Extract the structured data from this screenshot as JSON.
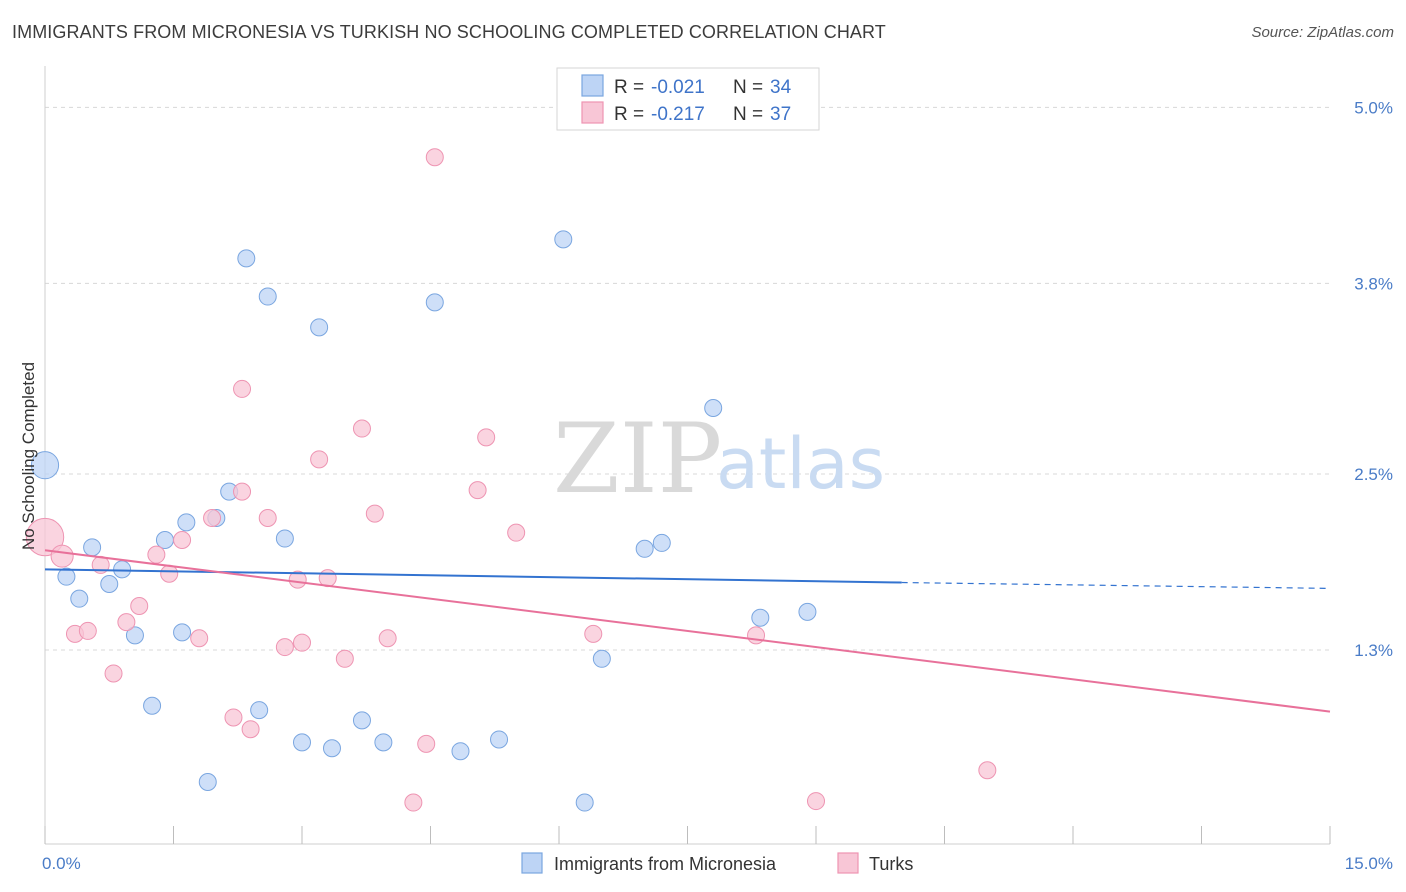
{
  "header": {
    "title": "IMMIGRANTS FROM MICRONESIA VS TURKISH NO SCHOOLING COMPLETED CORRELATION CHART",
    "source": "Source: ZipAtlas.com"
  },
  "watermark": {
    "part1": "ZIP",
    "part2": "atlas"
  },
  "legend": {
    "rows": [
      {
        "r_label": "R =",
        "r_value": "-0.021",
        "n_label": "N =",
        "n_value": "34"
      },
      {
        "r_label": "R =",
        "r_value": "-0.217",
        "n_label": "N =",
        "n_value": "37"
      }
    ]
  },
  "bottom_legend": {
    "items": [
      {
        "label": "Immigrants from Micronesia"
      },
      {
        "label": "Turks"
      }
    ]
  },
  "colors": {
    "blue_fill": "#bdd4f5",
    "blue_stroke": "#7aa6e0",
    "blue_line": "#3373d0",
    "pink_fill": "#f8c6d6",
    "pink_stroke": "#ee94b2",
    "pink_line": "#e8719a",
    "tick_label": "#4a7cc7",
    "grid": "#d8d8d8"
  },
  "chart_data": {
    "type": "scatter",
    "title": "IMMIGRANTS FROM MICRONESIA VS TURKISH NO SCHOOLING COMPLETED CORRELATION CHART",
    "xlabel": "",
    "ylabel": "No Schooling Completed",
    "xlim": [
      0,
      15
    ],
    "ylim": [
      0.1,
      5.2
    ],
    "x_tick_labels": [
      {
        "value": 0,
        "label": "0.0%"
      },
      {
        "value": 15,
        "label": "15.0%"
      }
    ],
    "y_tick_labels": [
      {
        "value": 1.3,
        "label": "1.3%"
      },
      {
        "value": 2.5,
        "label": "2.5%"
      },
      {
        "value": 3.8,
        "label": "3.8%"
      },
      {
        "value": 5.0,
        "label": "5.0%"
      }
    ],
    "grid": true,
    "legend_position": "top-center",
    "series": [
      {
        "name": "Immigrants from Micronesia",
        "color": "#7aa6e0",
        "r": -0.021,
        "n": 34,
        "points": [
          [
            0.0,
            2.56,
            1.6
          ],
          [
            0.25,
            1.8,
            1
          ],
          [
            0.4,
            1.65,
            1
          ],
          [
            0.55,
            2.0,
            1
          ],
          [
            0.75,
            1.75,
            1
          ],
          [
            0.9,
            1.85,
            1
          ],
          [
            1.05,
            1.4,
            1
          ],
          [
            1.25,
            0.92,
            1
          ],
          [
            1.4,
            2.05,
            1
          ],
          [
            1.6,
            1.42,
            1
          ],
          [
            1.65,
            2.17,
            1
          ],
          [
            1.9,
            0.4,
            1
          ],
          [
            2.0,
            2.2,
            1
          ],
          [
            2.15,
            2.38,
            1
          ],
          [
            2.35,
            3.97,
            1
          ],
          [
            2.5,
            0.89,
            1
          ],
          [
            2.6,
            3.71,
            1
          ],
          [
            2.8,
            2.06,
            1
          ],
          [
            3.0,
            0.67,
            1
          ],
          [
            3.2,
            3.5,
            1
          ],
          [
            3.35,
            0.63,
            1
          ],
          [
            3.7,
            0.82,
            1
          ],
          [
            3.95,
            0.67,
            1
          ],
          [
            4.55,
            3.67,
            1
          ],
          [
            4.85,
            0.61,
            1
          ],
          [
            5.3,
            0.69,
            1
          ],
          [
            6.05,
            4.1,
            1
          ],
          [
            6.3,
            0.26,
            1
          ],
          [
            6.5,
            1.24,
            1
          ],
          [
            7.0,
            1.99,
            1
          ],
          [
            7.2,
            2.03,
            1
          ],
          [
            7.8,
            2.95,
            1
          ],
          [
            8.35,
            1.52,
            1
          ],
          [
            8.9,
            1.56,
            1
          ]
        ],
        "trend": {
          "x0": 0,
          "y0": 1.85,
          "x1_solid": 10.0,
          "y1_solid": 1.76,
          "x1": 15,
          "y1": 1.72
        }
      },
      {
        "name": "Turks",
        "color": "#ee94b2",
        "r": -0.217,
        "n": 37,
        "points": [
          [
            0.0,
            2.07,
            2.2
          ],
          [
            0.2,
            1.94,
            1.3
          ],
          [
            0.35,
            1.41,
            1
          ],
          [
            0.5,
            1.43,
            1
          ],
          [
            0.65,
            1.88,
            1
          ],
          [
            0.8,
            1.14,
            1
          ],
          [
            0.95,
            1.49,
            1
          ],
          [
            1.1,
            1.6,
            1
          ],
          [
            1.3,
            1.95,
            1
          ],
          [
            1.45,
            1.82,
            1
          ],
          [
            1.6,
            2.05,
            1
          ],
          [
            1.8,
            1.38,
            1
          ],
          [
            1.95,
            2.2,
            1
          ],
          [
            2.2,
            0.84,
            1
          ],
          [
            2.3,
            2.38,
            1
          ],
          [
            2.3,
            3.08,
            1
          ],
          [
            2.4,
            0.76,
            1
          ],
          [
            2.6,
            2.2,
            1
          ],
          [
            2.8,
            1.32,
            1
          ],
          [
            2.95,
            1.78,
            1
          ],
          [
            3.0,
            1.35,
            1
          ],
          [
            3.2,
            2.6,
            1
          ],
          [
            3.3,
            1.79,
            1
          ],
          [
            3.5,
            1.24,
            1
          ],
          [
            3.7,
            2.81,
            1
          ],
          [
            3.85,
            2.23,
            1
          ],
          [
            4.0,
            1.38,
            1
          ],
          [
            4.3,
            0.26,
            1
          ],
          [
            4.45,
            0.66,
            1
          ],
          [
            4.55,
            4.66,
            1
          ],
          [
            5.05,
            2.39,
            1
          ],
          [
            5.15,
            2.75,
            1
          ],
          [
            5.5,
            2.1,
            1
          ],
          [
            6.4,
            1.41,
            1
          ],
          [
            8.3,
            1.4,
            1
          ],
          [
            9.0,
            0.27,
            1
          ],
          [
            11.0,
            0.48,
            1
          ]
        ],
        "trend": {
          "x0": 0,
          "y0": 1.98,
          "x1": 15,
          "y1": 0.88
        }
      }
    ]
  }
}
